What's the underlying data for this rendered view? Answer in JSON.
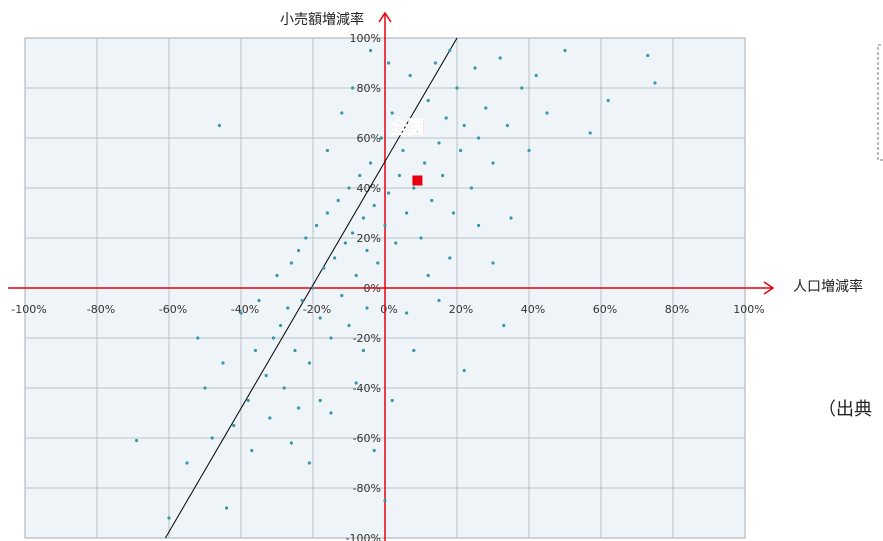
{
  "chart_data": {
    "type": "scatter",
    "x_label": "人口増減率",
    "y_label": "小売額増減率",
    "note": "（出典",
    "xlim": [
      -100,
      100
    ],
    "ylim": [
      -100,
      100
    ],
    "xticks": [
      {
        "value": -100,
        "label": "-100%"
      },
      {
        "value": -80,
        "label": "-80%"
      },
      {
        "value": -60,
        "label": "-60%"
      },
      {
        "value": -40,
        "label": "-40%"
      },
      {
        "value": -20,
        "label": "-20%"
      },
      {
        "value": 0,
        "label": "0%"
      },
      {
        "value": 20,
        "label": "20%"
      },
      {
        "value": 40,
        "label": "40%"
      },
      {
        "value": 60,
        "label": "60%"
      },
      {
        "value": 80,
        "label": "80%"
      },
      {
        "value": 100,
        "label": "100%"
      }
    ],
    "yticks": [
      {
        "value": -100,
        "label": "-100%"
      },
      {
        "value": -80,
        "label": "-80%"
      },
      {
        "value": -60,
        "label": "-60%"
      },
      {
        "value": -40,
        "label": "-40%"
      },
      {
        "value": -20,
        "label": "-20%"
      },
      {
        "value": 0,
        "label": "0%"
      },
      {
        "value": 20,
        "label": "20%"
      },
      {
        "value": 40,
        "label": "40%"
      },
      {
        "value": 60,
        "label": "60%"
      },
      {
        "value": 80,
        "label": "80%"
      },
      {
        "value": 100,
        "label": "100%"
      }
    ],
    "grid": true,
    "series": [
      {
        "color": "#3a97a6",
        "x": [
          -50,
          -45,
          -42,
          -40,
          -38,
          -36,
          -35,
          -33,
          -31,
          -30,
          -29,
          -28,
          -27,
          -26,
          -25,
          -24,
          -23,
          -22,
          -21,
          -20,
          -19,
          -18,
          -17,
          -16,
          -15,
          -14,
          -13,
          -12,
          -11,
          -10,
          -10,
          -9,
          -8,
          -7,
          -6,
          -5,
          -5,
          -4,
          -3,
          -2,
          -1,
          0,
          1,
          2,
          3,
          4,
          5,
          6,
          7,
          8,
          9,
          10,
          11,
          12,
          13,
          14,
          15,
          16,
          17,
          18,
          19,
          20,
          21,
          22,
          24,
          25,
          26,
          28,
          30,
          32,
          34,
          35,
          38,
          40,
          42,
          45,
          50,
          57,
          62,
          73,
          75,
          -69,
          -60,
          -55,
          -48,
          -52,
          -46,
          -44,
          -37,
          -32,
          -26,
          -21,
          -18,
          -12,
          -8,
          -3,
          0,
          2,
          8,
          15,
          22,
          30,
          -15,
          -24,
          -6,
          -16,
          -9,
          -4,
          1,
          6,
          12,
          18,
          26,
          33
        ],
        "values": [
          -40,
          -30,
          -55,
          -10,
          -45,
          -25,
          -5,
          -35,
          -20,
          5,
          -15,
          -40,
          -8,
          10,
          -25,
          15,
          -5,
          20,
          -30,
          0,
          25,
          -12,
          8,
          30,
          -20,
          12,
          35,
          -3,
          18,
          40,
          -15,
          22,
          5,
          45,
          28,
          -8,
          15,
          50,
          33,
          10,
          60,
          25,
          38,
          70,
          18,
          45,
          55,
          30,
          85,
          40,
          62,
          20,
          50,
          75,
          35,
          90,
          58,
          45,
          68,
          95,
          30,
          80,
          55,
          65,
          40,
          88,
          60,
          72,
          50,
          92,
          65,
          28,
          80,
          55,
          85,
          70,
          95,
          62,
          75,
          93,
          82,
          -61,
          -92,
          -70,
          -60,
          -20,
          65,
          -88,
          -65,
          -52,
          -62,
          -70,
          -45,
          70,
          -38,
          -65,
          -85,
          -45,
          -25,
          -5,
          -33,
          10,
          -50,
          -48,
          -25,
          55,
          80,
          95,
          90,
          -10,
          5,
          12,
          25,
          -15
        ]
      },
      {
        "name": "全国",
        "color": "#e60012",
        "x": [
          9
        ],
        "values": [
          43
        ]
      }
    ],
    "trend_line": {
      "color": "#000000",
      "x": [
        -61,
        20
      ],
      "values": [
        -100,
        100
      ]
    },
    "axis_color": "#e60012"
  }
}
